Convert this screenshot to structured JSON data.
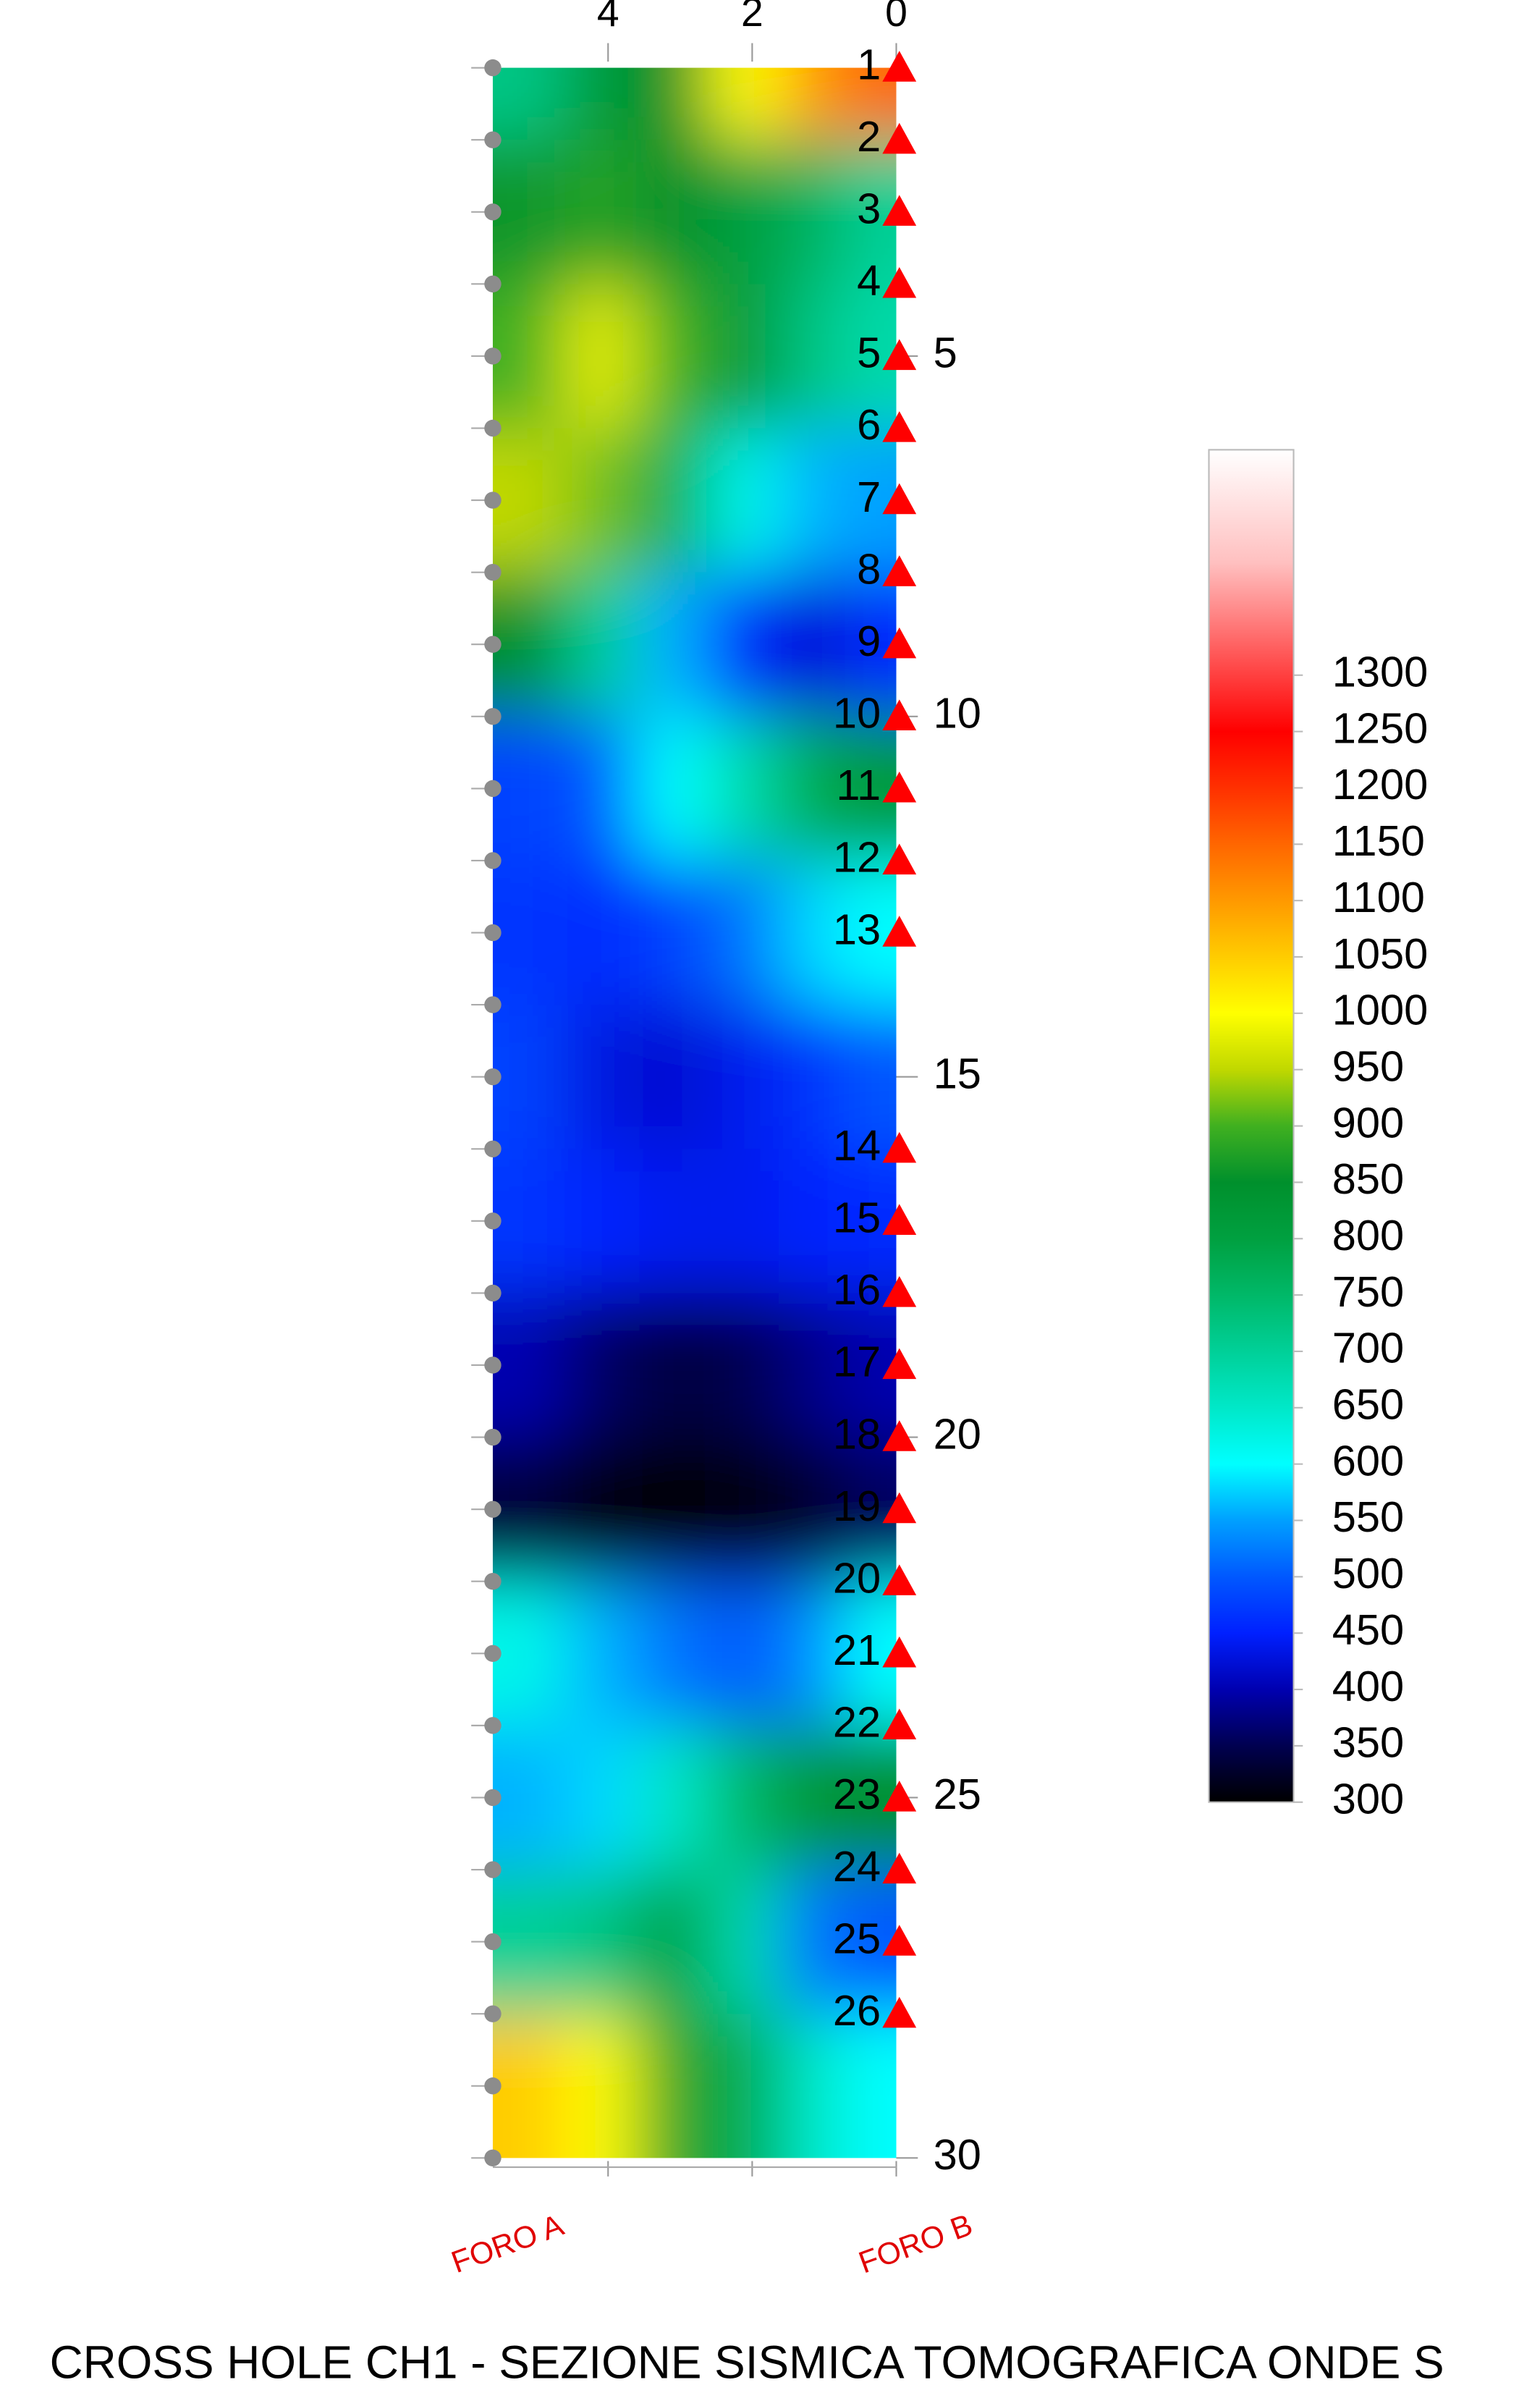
{
  "chart_data": {
    "type": "heatmap",
    "title": "CROSS HOLE CH1 - SEZIONE SISMICA TOMOGRAFICA ONDE S",
    "annotations": [
      "FORO A",
      "FORO B"
    ],
    "xlim": [
      5.6,
      0
    ],
    "xticks": [
      4,
      2,
      0
    ],
    "ylim": [
      1,
      30
    ],
    "yticks": [
      5,
      10,
      15,
      20,
      25,
      30
    ],
    "x": [
      5.1,
      4.1,
      3.1,
      2.1,
      1.1,
      0.3
    ],
    "depths": [
      1,
      3,
      5,
      7,
      9,
      11,
      13,
      15,
      17,
      19,
      21,
      23,
      25,
      27,
      29
    ],
    "z": [
      [
        720,
        820,
        850,
        1000,
        1100,
        1150
      ],
      [
        860,
        880,
        850,
        800,
        760,
        700
      ],
      [
        900,
        980,
        900,
        820,
        720,
        680
      ],
      [
        950,
        920,
        780,
        620,
        560,
        550
      ],
      [
        850,
        700,
        560,
        450,
        420,
        460
      ],
      [
        480,
        500,
        600,
        680,
        780,
        820
      ],
      [
        470,
        460,
        480,
        520,
        580,
        600
      ],
      [
        480,
        430,
        420,
        440,
        470,
        500
      ],
      [
        470,
        450,
        440,
        440,
        450,
        460
      ],
      [
        400,
        360,
        340,
        350,
        380,
        400
      ],
      [
        340,
        310,
        300,
        310,
        330,
        360
      ],
      [
        620,
        560,
        520,
        500,
        540,
        600
      ],
      [
        560,
        580,
        650,
        750,
        830,
        850
      ],
      [
        700,
        720,
        800,
        680,
        520,
        500
      ],
      [
        1050,
        1000,
        880,
        780,
        650,
        600
      ]
    ],
    "colorbar": {
      "lim": [
        300,
        1500
      ],
      "ticks": [
        300,
        350,
        400,
        450,
        500,
        550,
        600,
        650,
        700,
        750,
        800,
        850,
        900,
        950,
        1000,
        1050,
        1100,
        1150,
        1200,
        1250,
        1300
      ]
    },
    "colormap": [
      {
        "value": 300,
        "color": "#000000"
      },
      {
        "value": 350,
        "color": "#000050"
      },
      {
        "value": 400,
        "color": "#0000b0"
      },
      {
        "value": 450,
        "color": "#0020ff"
      },
      {
        "value": 500,
        "color": "#0058ff"
      },
      {
        "value": 550,
        "color": "#00a0ff"
      },
      {
        "value": 600,
        "color": "#00ffff"
      },
      {
        "value": 650,
        "color": "#00e8c8"
      },
      {
        "value": 700,
        "color": "#00d098"
      },
      {
        "value": 750,
        "color": "#00b868"
      },
      {
        "value": 800,
        "color": "#00a040"
      },
      {
        "value": 850,
        "color": "#00902c"
      },
      {
        "value": 900,
        "color": "#40b020"
      },
      {
        "value": 950,
        "color": "#c0d800"
      },
      {
        "value": 1000,
        "color": "#ffff00"
      },
      {
        "value": 1050,
        "color": "#ffcc00"
      },
      {
        "value": 1100,
        "color": "#ff9900"
      },
      {
        "value": 1150,
        "color": "#ff6600"
      },
      {
        "value": 1200,
        "color": "#ff3000"
      },
      {
        "value": 1250,
        "color": "#ff0000"
      },
      {
        "value": 1300,
        "color": "#ff4040"
      },
      {
        "value": 1400,
        "color": "#ffc0c0"
      },
      {
        "value": 1500,
        "color": "#ffffff"
      }
    ],
    "sources": {
      "color": "#8c8c8c",
      "depths": [
        1,
        2,
        3,
        4,
        5,
        6,
        7,
        8,
        9,
        10,
        11,
        12,
        13,
        14,
        15,
        16,
        17,
        18,
        19,
        20,
        21,
        22,
        23,
        24,
        25,
        26,
        27,
        28,
        29,
        30
      ]
    },
    "receivers": {
      "color": "#ff0000",
      "labels": [
        "1",
        "2",
        "3",
        "4",
        "5",
        "6",
        "7",
        "8",
        "9",
        "10",
        "11",
        "12",
        "13",
        "14",
        "15",
        "16",
        "17",
        "18",
        "19",
        "20",
        "21",
        "22",
        "23",
        "24",
        "25",
        "26"
      ],
      "depths": [
        1,
        2,
        3,
        4,
        5,
        6,
        7,
        8,
        9,
        10,
        11,
        12,
        13,
        16,
        17,
        18,
        19,
        20,
        21,
        22,
        23,
        24,
        25,
        26,
        27,
        28
      ]
    }
  }
}
